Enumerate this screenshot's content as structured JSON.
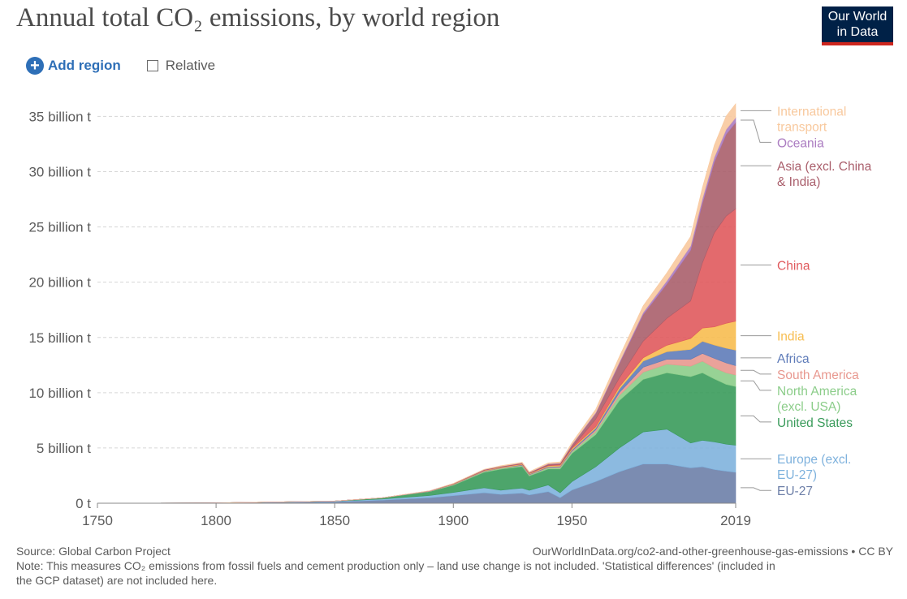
{
  "header": {
    "title": "Annual total CO₂ emissions, by world region",
    "logo_line1": "Our World",
    "logo_line2": "in Data"
  },
  "controls": {
    "add_region_label": "Add region",
    "relative_label": "Relative",
    "relative_checked": false
  },
  "footer": {
    "source": "Source: Global Carbon Project",
    "url": "OurWorldInData.org/co2-and-other-greenhouse-gas-emissions • CC BY",
    "note_line1": "Note: This measures CO₂ emissions from fossil fuels and cement production only – land use change is not included. 'Statistical differences' (included in",
    "note_line2": "the GCP dataset) are not included here."
  },
  "chart_data": {
    "type": "area",
    "stacked": true,
    "title": "Annual total CO₂ emissions, by world region",
    "ylim": [
      0,
      36.5
    ],
    "y_ticks": [
      0,
      5,
      10,
      15,
      20,
      25,
      30,
      35
    ],
    "y_tick_labels": [
      "0 t",
      "5 billion t",
      "10 billion t",
      "15 billion t",
      "20 billion t",
      "25 billion t",
      "30 billion t",
      "35 billion t"
    ],
    "x_ticks": [
      1750,
      1800,
      1850,
      1900,
      1950,
      2019
    ],
    "x_tick_labels": [
      "1750",
      "1800",
      "1850",
      "1900",
      "1950",
      "2019"
    ],
    "xlim": [
      1750,
      2019
    ],
    "grid": "horizontal dashed",
    "x": [
      1750,
      1800,
      1850,
      1870,
      1890,
      1900,
      1913,
      1920,
      1929,
      1932,
      1940,
      1945,
      1950,
      1960,
      1970,
      1980,
      1990,
      2000,
      2005,
      2010,
      2015,
      2019
    ],
    "series": [
      {
        "name": "EU-27",
        "color": "#6d7fa8",
        "values": [
          0.009,
          0.02,
          0.13,
          0.28,
          0.5,
          0.68,
          0.95,
          0.8,
          0.92,
          0.75,
          1.05,
          0.5,
          1.2,
          1.95,
          2.85,
          3.55,
          3.55,
          3.2,
          3.3,
          3.05,
          2.9,
          2.8
        ]
      },
      {
        "name": "Europe (excl. EU-27)",
        "color": "#7fb2dd",
        "values": [
          0.0,
          0.01,
          0.05,
          0.1,
          0.2,
          0.3,
          0.45,
          0.38,
          0.45,
          0.42,
          0.6,
          0.45,
          0.75,
          1.35,
          2.15,
          2.9,
          3.15,
          2.25,
          2.4,
          2.5,
          2.45,
          2.45
        ]
      },
      {
        "name": "United States",
        "color": "#3a9b5b",
        "values": [
          0.0,
          0.0,
          0.02,
          0.1,
          0.35,
          0.65,
          1.4,
          1.9,
          1.95,
          1.3,
          1.45,
          2.15,
          2.55,
          2.9,
          4.3,
          4.75,
          5.1,
          6.0,
          6.1,
          5.7,
          5.4,
          5.3
        ]
      },
      {
        "name": "North America (excl. USA)",
        "color": "#8ccd8a",
        "values": [
          0,
          0,
          0,
          0.01,
          0.02,
          0.04,
          0.07,
          0.07,
          0.08,
          0.07,
          0.1,
          0.12,
          0.16,
          0.27,
          0.45,
          0.65,
          0.78,
          0.95,
          1.05,
          1.0,
          1.05,
          1.05
        ]
      },
      {
        "name": "South America",
        "color": "#e8988f",
        "values": [
          0,
          0,
          0,
          0,
          0.01,
          0.02,
          0.03,
          0.03,
          0.04,
          0.04,
          0.05,
          0.06,
          0.08,
          0.16,
          0.27,
          0.45,
          0.45,
          0.62,
          0.7,
          0.86,
          0.9,
          0.85
        ]
      },
      {
        "name": "Africa",
        "color": "#5f7cb9",
        "values": [
          0,
          0,
          0,
          0,
          0.01,
          0.02,
          0.03,
          0.03,
          0.04,
          0.04,
          0.06,
          0.07,
          0.1,
          0.16,
          0.32,
          0.55,
          0.68,
          0.9,
          1.1,
          1.2,
          1.33,
          1.4
        ]
      },
      {
        "name": "India",
        "color": "#f7bd50",
        "values": [
          0,
          0,
          0,
          0,
          0.01,
          0.03,
          0.04,
          0.05,
          0.06,
          0.06,
          0.08,
          0.09,
          0.1,
          0.12,
          0.2,
          0.3,
          0.58,
          0.98,
          1.2,
          1.65,
          2.25,
          2.62
        ]
      },
      {
        "name": "China",
        "color": "#e05a5d",
        "values": [
          0,
          0,
          0,
          0,
          0,
          0.01,
          0.02,
          0.02,
          0.03,
          0.03,
          0.05,
          0.06,
          0.08,
          0.7,
          0.8,
          1.5,
          2.45,
          3.4,
          5.9,
          8.5,
          9.7,
          10.17
        ]
      },
      {
        "name": "Asia (excl. China & India)",
        "color": "#aa5f6c",
        "values": [
          0,
          0,
          0,
          0,
          0.01,
          0.02,
          0.04,
          0.05,
          0.06,
          0.06,
          0.1,
          0.1,
          0.25,
          0.5,
          1.3,
          2.4,
          3.1,
          4.6,
          5.4,
          6.4,
          7.4,
          7.8
        ]
      },
      {
        "name": "Oceania",
        "color": "#ab7cc1",
        "values": [
          0,
          0,
          0,
          0,
          0.01,
          0.01,
          0.02,
          0.02,
          0.02,
          0.02,
          0.03,
          0.04,
          0.05,
          0.08,
          0.13,
          0.2,
          0.3,
          0.38,
          0.42,
          0.45,
          0.45,
          0.45
        ]
      },
      {
        "name": "International transport",
        "color": "#f8c99e",
        "values": [
          0,
          0,
          0,
          0,
          0.01,
          0.02,
          0.03,
          0.04,
          0.06,
          0.06,
          0.08,
          0.1,
          0.16,
          0.3,
          0.5,
          0.6,
          0.7,
          0.85,
          1.0,
          1.1,
          1.2,
          1.25
        ]
      }
    ],
    "legend_position": "right, labels at series end"
  }
}
